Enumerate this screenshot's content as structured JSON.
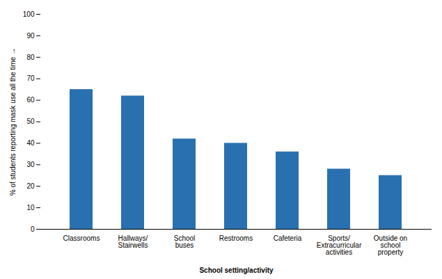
{
  "chart_data": {
    "type": "bar",
    "categories": [
      "Classrooms",
      "Hallways/\nStairwells",
      "School\nbuses",
      "Restrooms",
      "Cafeteria",
      "Sports/\nExtracurricular\nactivities",
      "Outside on\nschool\nproperty"
    ],
    "values": [
      65,
      62,
      42,
      40,
      36,
      28,
      25
    ],
    "color": "#2970B0",
    "xlabel": "School setting/activity",
    "ylabel": "% of students reporting mask use all the time",
    "ylim": [
      0,
      100
    ],
    "yticks": [
      0,
      10,
      20,
      30,
      40,
      50,
      60,
      70,
      80,
      90,
      100
    ],
    "grid": false
  }
}
